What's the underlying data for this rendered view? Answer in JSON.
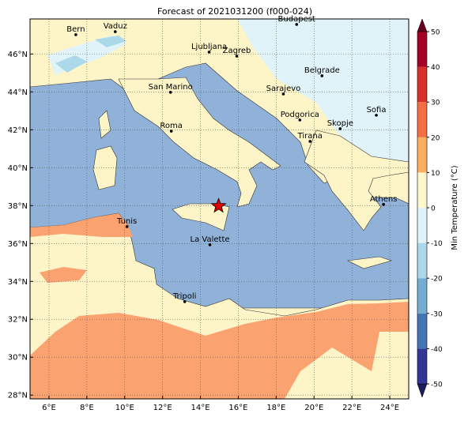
{
  "map": {
    "title": "Forecast of 2021031200 (f000-024)",
    "lon_range": [
      5,
      25
    ],
    "lat_range": [
      27.8,
      47.85
    ],
    "lon_ticks": [
      {
        "value": 6,
        "label": "6°E"
      },
      {
        "value": 8,
        "label": "8°E"
      },
      {
        "value": 10,
        "label": "10°E"
      },
      {
        "value": 12,
        "label": "12°E"
      },
      {
        "value": 14,
        "label": "14°E"
      },
      {
        "value": 16,
        "label": "16°E"
      },
      {
        "value": 18,
        "label": "18°E"
      },
      {
        "value": 20,
        "label": "20°E"
      },
      {
        "value": 22,
        "label": "22°E"
      },
      {
        "value": 24,
        "label": "24°E"
      }
    ],
    "lat_ticks": [
      {
        "value": 28,
        "label": "28°N"
      },
      {
        "value": 30,
        "label": "30°N"
      },
      {
        "value": 32,
        "label": "32°N"
      },
      {
        "value": 34,
        "label": "34°N"
      },
      {
        "value": 36,
        "label": "36°N"
      },
      {
        "value": 38,
        "label": "38°N"
      },
      {
        "value": 40,
        "label": "40°N"
      },
      {
        "value": 42,
        "label": "42°N"
      },
      {
        "value": 44,
        "label": "44°N"
      },
      {
        "value": 46,
        "label": "46°N"
      }
    ],
    "cities": [
      {
        "name": "Bern",
        "lon": 7.42,
        "lat": 47.02
      },
      {
        "name": "Vaduz",
        "lon": 9.5,
        "lat": 47.18
      },
      {
        "name": "Budapest",
        "lon": 19.08,
        "lat": 47.56
      },
      {
        "name": "Ljubljana",
        "lon": 14.46,
        "lat": 46.1
      },
      {
        "name": "Zagreb",
        "lon": 15.92,
        "lat": 45.89
      },
      {
        "name": "Belgrade",
        "lon": 20.42,
        "lat": 44.85
      },
      {
        "name": "San Marino",
        "lon": 12.42,
        "lat": 43.98
      },
      {
        "name": "Sarajevo",
        "lon": 18.38,
        "lat": 43.89
      },
      {
        "name": "Sofia",
        "lon": 23.29,
        "lat": 42.77
      },
      {
        "name": "Podgorica",
        "lon": 19.25,
        "lat": 42.52
      },
      {
        "name": "Skopje",
        "lon": 21.38,
        "lat": 42.06
      },
      {
        "name": "Roma",
        "lon": 12.46,
        "lat": 41.93
      },
      {
        "name": "Tirana",
        "lon": 19.79,
        "lat": 41.39
      },
      {
        "name": "Athens",
        "lon": 23.67,
        "lat": 38.06
      },
      {
        "name": "Tunis",
        "lon": 10.12,
        "lat": 36.89
      },
      {
        "name": "La Valette",
        "lon": 14.5,
        "lat": 35.93
      },
      {
        "name": "Tripoli",
        "lon": 13.17,
        "lat": 32.93
      }
    ],
    "marker": {
      "lon": 14.96,
      "lat": 37.98
    },
    "colorbar": {
      "label": "Min Temperature (°C)",
      "ticks": [
        -50,
        -40,
        -30,
        -20,
        -10,
        0,
        10,
        20,
        30,
        40,
        50
      ],
      "colors": [
        "#313695",
        "#4575b4",
        "#74add1",
        "#abd9e9",
        "#e0f3f8",
        "#fff7cc",
        "#fdae61",
        "#f46d43",
        "#d73027",
        "#a50026"
      ]
    }
  }
}
